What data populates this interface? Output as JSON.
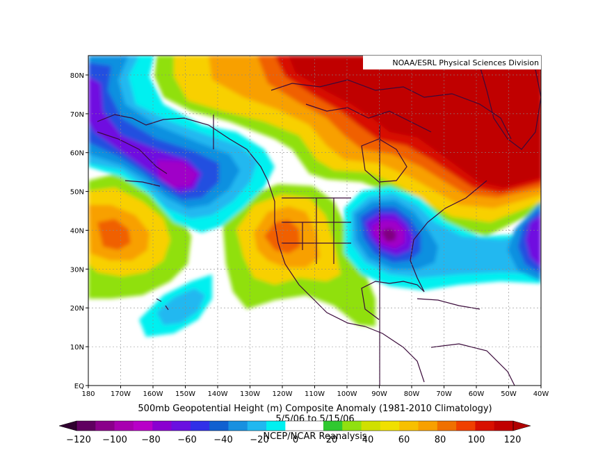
{
  "map": {
    "credit": "NOAA/ESRL Physical Sciences Division",
    "title": "500mb Geopotential Height (m) Composite Anomaly (1981-2010 Climatology)",
    "date_range": "5/5/06 to 5/15/06",
    "source": "NCEP/NCAR Reanalysis",
    "lat_labels": [
      "80N",
      "70N",
      "60N",
      "50N",
      "40N",
      "30N",
      "20N",
      "10N",
      "EQ"
    ],
    "lon_labels": [
      "180",
      "170W",
      "160W",
      "150W",
      "140W",
      "130W",
      "120W",
      "110W",
      "100W",
      "90W",
      "80W",
      "70W",
      "60W",
      "50W",
      "40W"
    ]
  },
  "colorbar": {
    "labels": [
      "−120",
      "−100",
      "−80",
      "−60",
      "−40",
      "−20",
      "0",
      "20",
      "40",
      "60",
      "80",
      "100",
      "120"
    ],
    "colors": [
      "#600060",
      "#8a008a",
      "#a800b0",
      "#b800c8",
      "#8a00d0",
      "#6a10e0",
      "#3030e8",
      "#1060d0",
      "#1890e0",
      "#20b8f0",
      "#00f0f0",
      "#ffffff",
      "#ffffff",
      "#30c830",
      "#90e010",
      "#d0e000",
      "#f0e000",
      "#f8c000",
      "#f8a000",
      "#f07000",
      "#f04000",
      "#d81000",
      "#c00000"
    ],
    "underflow_color": "#300030",
    "overflow_color": "#b00000"
  },
  "contours": {
    "colors": {
      "pos120": "#c00000",
      "pos100": "#d81000",
      "pos80": "#f06000",
      "pos60": "#f8a000",
      "pos40": "#f8d000",
      "pos20": "#90e010",
      "pos10": "#30c830",
      "neg10": "#00f0f0",
      "neg20": "#20b8f0",
      "neg40": "#1090e0",
      "neg60": "#2050e0",
      "neg80": "#7010e0",
      "neg100": "#a000c8",
      "neg120": "#800080"
    }
  }
}
